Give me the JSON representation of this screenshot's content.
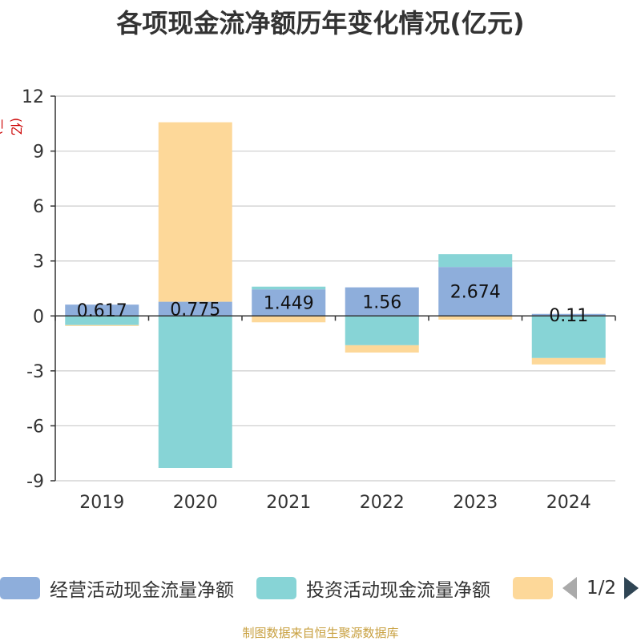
{
  "title": "各项现金流净额历年变化情况(亿元)",
  "unit_label": "(亿元)",
  "source": "制图数据来自恒生聚源数据库",
  "legend": {
    "items": [
      {
        "label": "经营活动现金流量净额",
        "color": "#8eaedb"
      },
      {
        "label": "投资活动现金流量净额",
        "color": "#87d4d6"
      },
      {
        "label": "",
        "color": "#fdd899"
      }
    ],
    "page": "1/2"
  },
  "chart_data": {
    "type": "bar",
    "stacked": true,
    "categories": [
      "2019",
      "2020",
      "2021",
      "2022",
      "2023",
      "2024"
    ],
    "ylim": [
      -9,
      12
    ],
    "yticks": [
      -9,
      -6,
      -3,
      0,
      3,
      6,
      9,
      12
    ],
    "series": [
      {
        "name": "经营活动现金流量净额",
        "color": "#8eaedb",
        "values": [
          0.617,
          0.775,
          1.449,
          1.56,
          2.674,
          0.11
        ]
      },
      {
        "name": "投资活动现金流量净额",
        "color": "#87d4d6",
        "values": [
          -0.5,
          -8.3,
          0.15,
          -1.6,
          0.7,
          -2.3
        ]
      },
      {
        "name": "",
        "color": "#fdd899",
        "values": [
          -0.05,
          9.8,
          -0.35,
          -0.4,
          -0.2,
          -0.35
        ]
      }
    ],
    "data_labels": [
      "0.617",
      "0.775",
      "1.449",
      "1.56",
      "2.674",
      "0.11"
    ]
  }
}
